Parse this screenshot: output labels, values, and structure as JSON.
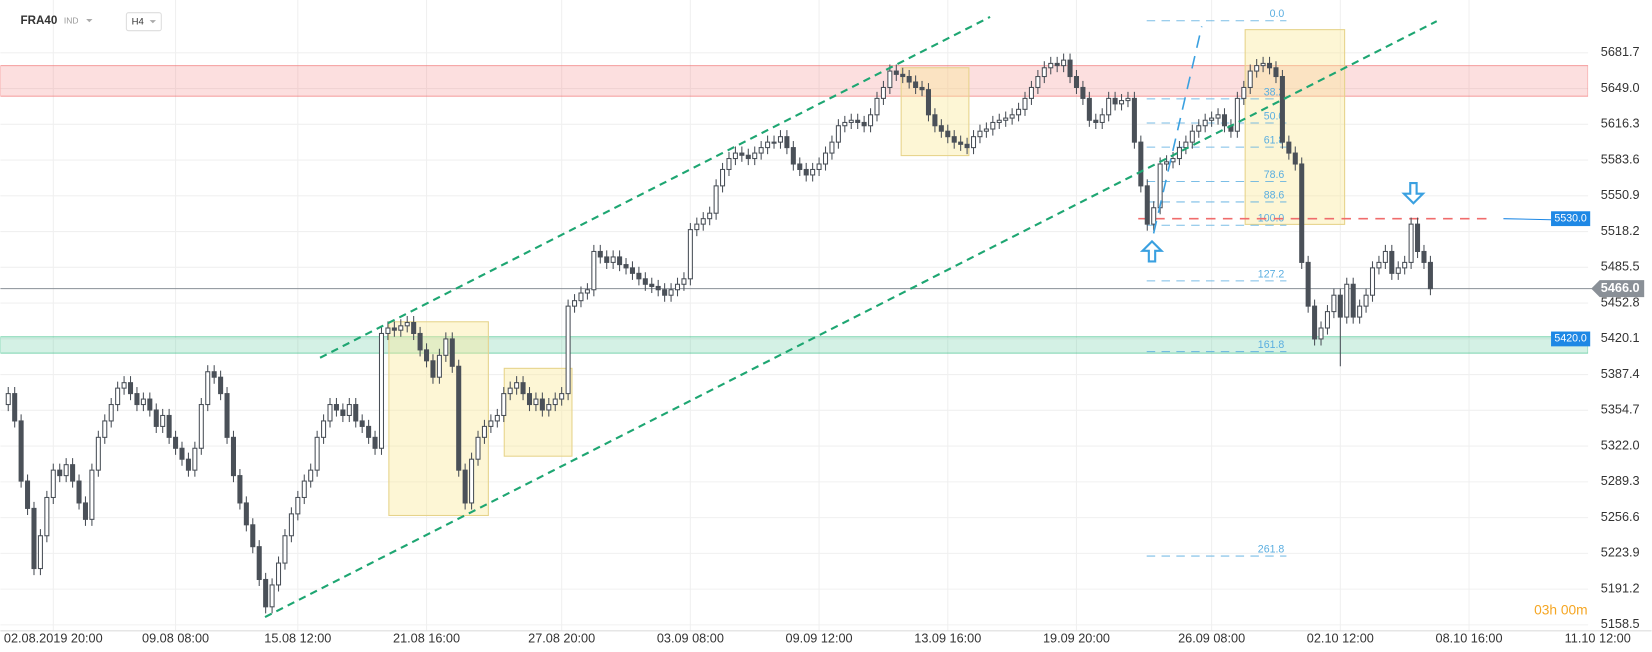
{
  "header": {
    "symbol": "FRA40",
    "market": "IND",
    "interval": "H4"
  },
  "chart_data": {
    "type": "candlestick",
    "open": [
      5360,
      5370,
      5345,
      5290,
      5265,
      5210,
      5240,
      5275,
      5300,
      5295,
      5305,
      5290,
      5270,
      5255,
      5300,
      5330,
      5345,
      5360,
      5375,
      5380,
      5370,
      5360,
      5365,
      5355,
      5340,
      5350,
      5330,
      5320,
      5310,
      5300,
      5320,
      5360,
      5390,
      5385,
      5370,
      5330,
      5295,
      5270,
      5250,
      5230,
      5200,
      5175,
      5195,
      5215,
      5240,
      5260,
      5275,
      5290,
      5300,
      5330,
      5345,
      5360,
      5355,
      5350,
      5360,
      5345,
      5340,
      5330,
      5320,
      5425,
      5430,
      5428,
      5432,
      5435,
      5425,
      5410,
      5400,
      5385,
      5405,
      5420,
      5395,
      5300,
      5270,
      5310,
      5330,
      5340,
      5345,
      5350,
      5370,
      5375,
      5380,
      5370,
      5360,
      5365,
      5355,
      5360,
      5365,
      5370,
      5450,
      5455,
      5462,
      5465,
      5500,
      5495,
      5490,
      5495,
      5488,
      5485,
      5480,
      5475,
      5470,
      5468,
      5465,
      5460,
      5465,
      5470,
      5475,
      5520,
      5525,
      5530,
      5535,
      5560,
      5575,
      5585,
      5590,
      5588,
      5585,
      5590,
      5595,
      5600,
      5600,
      5605,
      5595,
      5580,
      5575,
      5570,
      5575,
      5580,
      5590,
      5600,
      5615,
      5618,
      5620,
      5618,
      5615,
      5625,
      5640,
      5650,
      5665,
      5662,
      5660,
      5655,
      5650,
      5648,
      5625,
      5615,
      5610,
      5605,
      5600,
      5598,
      5595,
      5605,
      5610,
      5612,
      5618,
      5620,
      5622,
      5625,
      5630,
      5640,
      5650,
      5660,
      5668,
      5672,
      5670,
      5675,
      5660,
      5650,
      5640,
      5620,
      5618,
      5625,
      5640,
      5635,
      5638,
      5640,
      5600,
      5560,
      5525,
      5540,
      5580,
      5582,
      5585,
      5595,
      5600,
      5610,
      5615,
      5620,
      5622,
      5625,
      5615,
      5610,
      5640,
      5650,
      5665,
      5670,
      5672,
      5668,
      5660,
      5600,
      5590,
      5580,
      5490,
      5450,
      5420,
      5430,
      5445,
      5460,
      5440,
      5470,
      5440,
      5450,
      5460,
      5485,
      5490,
      5500,
      5480,
      5485,
      5490,
      5525,
      5500,
      5490
    ],
    "high": [
      5376,
      5376,
      5351,
      5296,
      5271,
      5246,
      5281,
      5306,
      5306,
      5311,
      5311,
      5296,
      5276,
      5306,
      5336,
      5351,
      5366,
      5381,
      5386,
      5386,
      5376,
      5371,
      5371,
      5361,
      5356,
      5356,
      5336,
      5326,
      5316,
      5326,
      5366,
      5396,
      5396,
      5391,
      5376,
      5336,
      5301,
      5276,
      5256,
      5236,
      5206,
      5201,
      5221,
      5246,
      5266,
      5281,
      5296,
      5306,
      5336,
      5351,
      5366,
      5366,
      5361,
      5366,
      5366,
      5351,
      5346,
      5336,
      5431,
      5436,
      5436,
      5438,
      5441,
      5441,
      5431,
      5416,
      5406,
      5411,
      5426,
      5426,
      5401,
      5306,
      5316,
      5336,
      5346,
      5351,
      5356,
      5376,
      5381,
      5386,
      5386,
      5376,
      5371,
      5371,
      5366,
      5371,
      5376,
      5456,
      5461,
      5468,
      5471,
      5506,
      5506,
      5501,
      5501,
      5501,
      5494,
      5491,
      5486,
      5481,
      5476,
      5474,
      5471,
      5471,
      5476,
      5481,
      5526,
      5531,
      5536,
      5541,
      5566,
      5581,
      5591,
      5596,
      5596,
      5594,
      5596,
      5601,
      5606,
      5606,
      5611,
      5611,
      5601,
      5586,
      5581,
      5581,
      5586,
      5596,
      5606,
      5621,
      5624,
      5626,
      5626,
      5624,
      5631,
      5646,
      5656,
      5671,
      5671,
      5668,
      5666,
      5661,
      5656,
      5654,
      5631,
      5621,
      5616,
      5611,
      5606,
      5604,
      5611,
      5616,
      5618,
      5624,
      5626,
      5628,
      5631,
      5636,
      5646,
      5656,
      5666,
      5674,
      5678,
      5678,
      5681,
      5681,
      5666,
      5656,
      5646,
      5626,
      5631,
      5646,
      5646,
      5644,
      5646,
      5646,
      5606,
      5566,
      5546,
      5586,
      5588,
      5591,
      5601,
      5606,
      5616,
      5621,
      5626,
      5628,
      5631,
      5631,
      5621,
      5646,
      5656,
      5671,
      5676,
      5678,
      5678,
      5674,
      5666,
      5606,
      5596,
      5586,
      5496,
      5456,
      5436,
      5451,
      5466,
      5466,
      5476,
      5476,
      5456,
      5466,
      5491,
      5496,
      5506,
      5506,
      5491,
      5496,
      5531,
      5531,
      5506,
      5496
    ],
    "low": [
      5354,
      5339,
      5284,
      5259,
      5204,
      5204,
      5234,
      5269,
      5289,
      5289,
      5284,
      5264,
      5249,
      5249,
      5294,
      5324,
      5339,
      5354,
      5369,
      5364,
      5354,
      5354,
      5349,
      5334,
      5334,
      5324,
      5314,
      5304,
      5294,
      5294,
      5314,
      5354,
      5379,
      5364,
      5324,
      5289,
      5264,
      5244,
      5224,
      5194,
      5169,
      5169,
      5189,
      5209,
      5234,
      5254,
      5269,
      5284,
      5294,
      5324,
      5339,
      5349,
      5344,
      5344,
      5339,
      5334,
      5324,
      5314,
      5314,
      5419,
      5422,
      5422,
      5426,
      5419,
      5404,
      5394,
      5379,
      5379,
      5399,
      5389,
      5294,
      5264,
      5264,
      5304,
      5324,
      5334,
      5339,
      5344,
      5364,
      5369,
      5364,
      5354,
      5354,
      5349,
      5349,
      5354,
      5359,
      5364,
      5444,
      5449,
      5456,
      5459,
      5489,
      5484,
      5484,
      5482,
      5479,
      5474,
      5469,
      5464,
      5462,
      5459,
      5454,
      5454,
      5459,
      5464,
      5469,
      5514,
      5519,
      5524,
      5529,
      5554,
      5569,
      5579,
      5582,
      5579,
      5579,
      5584,
      5589,
      5594,
      5594,
      5589,
      5574,
      5569,
      5564,
      5564,
      5569,
      5574,
      5584,
      5594,
      5609,
      5612,
      5612,
      5609,
      5609,
      5619,
      5634,
      5644,
      5656,
      5654,
      5649,
      5644,
      5642,
      5619,
      5609,
      5604,
      5599,
      5594,
      5592,
      5589,
      5589,
      5599,
      5604,
      5606,
      5612,
      5614,
      5616,
      5619,
      5624,
      5634,
      5644,
      5654,
      5662,
      5664,
      5664,
      5654,
      5644,
      5634,
      5614,
      5612,
      5612,
      5619,
      5629,
      5629,
      5632,
      5594,
      5554,
      5519,
      5519,
      5534,
      5574,
      5576,
      5579,
      5589,
      5594,
      5604,
      5609,
      5614,
      5616,
      5609,
      5604,
      5604,
      5634,
      5644,
      5659,
      5664,
      5662,
      5654,
      5594,
      5584,
      5574,
      5484,
      5444,
      5414,
      5414,
      5424,
      5439,
      5395,
      5434,
      5434,
      5434,
      5444,
      5454,
      5479,
      5484,
      5474,
      5474,
      5479,
      5484,
      5494,
      5484,
      5460
    ],
    "close": [
      5370,
      5345,
      5290,
      5265,
      5210,
      5240,
      5275,
      5300,
      5295,
      5305,
      5290,
      5270,
      5255,
      5300,
      5330,
      5345,
      5360,
      5375,
      5380,
      5370,
      5360,
      5365,
      5355,
      5340,
      5350,
      5330,
      5320,
      5310,
      5300,
      5320,
      5360,
      5390,
      5385,
      5370,
      5330,
      5295,
      5270,
      5250,
      5230,
      5200,
      5175,
      5195,
      5215,
      5240,
      5260,
      5275,
      5290,
      5300,
      5330,
      5345,
      5360,
      5355,
      5350,
      5360,
      5345,
      5340,
      5330,
      5320,
      5425,
      5430,
      5428,
      5432,
      5435,
      5425,
      5410,
      5400,
      5385,
      5405,
      5420,
      5395,
      5300,
      5270,
      5310,
      5330,
      5340,
      5345,
      5350,
      5370,
      5375,
      5380,
      5370,
      5360,
      5365,
      5355,
      5360,
      5365,
      5370,
      5450,
      5455,
      5462,
      5465,
      5500,
      5495,
      5490,
      5495,
      5488,
      5485,
      5480,
      5475,
      5470,
      5468,
      5465,
      5460,
      5465,
      5470,
      5475,
      5520,
      5525,
      5530,
      5535,
      5560,
      5575,
      5585,
      5590,
      5588,
      5585,
      5590,
      5595,
      5600,
      5600,
      5605,
      5595,
      5580,
      5575,
      5570,
      5575,
      5580,
      5590,
      5600,
      5615,
      5618,
      5620,
      5618,
      5615,
      5625,
      5640,
      5650,
      5665,
      5662,
      5660,
      5655,
      5650,
      5648,
      5625,
      5615,
      5610,
      5605,
      5600,
      5598,
      5595,
      5605,
      5610,
      5612,
      5618,
      5620,
      5622,
      5625,
      5630,
      5640,
      5650,
      5660,
      5668,
      5672,
      5670,
      5675,
      5660,
      5650,
      5640,
      5620,
      5618,
      5625,
      5640,
      5635,
      5638,
      5640,
      5600,
      5560,
      5525,
      5540,
      5580,
      5582,
      5585,
      5595,
      5600,
      5610,
      5615,
      5620,
      5622,
      5625,
      5615,
      5610,
      5640,
      5650,
      5665,
      5670,
      5672,
      5668,
      5660,
      5600,
      5590,
      5580,
      5490,
      5450,
      5420,
      5430,
      5445,
      5460,
      5440,
      5470,
      5440,
      5450,
      5460,
      5485,
      5490,
      5500,
      5480,
      5485,
      5490,
      5525,
      5500,
      5490,
      5466
    ],
    "up_color": "#ffffff",
    "down_color": "#4a5058",
    "outline_color": "#4a5058",
    "xlim": [
      -1,
      248
    ],
    "xticks": [
      {
        "value": 7,
        "label": "02.08.2019 20:00"
      },
      {
        "value": 26,
        "label": "09.08 08:00"
      },
      {
        "value": 45,
        "label": "15.08 12:00"
      },
      {
        "value": 65,
        "label": "21.08 16:00"
      },
      {
        "value": 86,
        "label": "27.08 20:00"
      },
      {
        "value": 106,
        "label": "03.09 08:00"
      },
      {
        "value": 126,
        "label": "09.09 12:00"
      },
      {
        "value": 146,
        "label": "13.09 16:00"
      },
      {
        "value": 166,
        "label": "19.09 20:00"
      },
      {
        "value": 187,
        "label": "26.09 08:00"
      },
      {
        "value": 207,
        "label": "02.10 12:00"
      },
      {
        "value": 227,
        "label": "08.10 16:00"
      },
      {
        "value": 247,
        "label": "11.10 12:00"
      }
    ],
    "ylim": [
      5154,
      5730
    ],
    "yticks": [
      5158.5,
      5191.2,
      5223.9,
      5256.6,
      5289.3,
      {
        "value": 5322,
        "label": "5322.0"
      },
      5354.7,
      5387.4,
      5420.1,
      5452.8,
      5485.5,
      5518.2,
      5550.9,
      5583.6,
      5616.3,
      {
        "value": 5649,
        "label": "5649.0"
      },
      5681.7
    ],
    "grid": true,
    "zones": [
      {
        "from": 5642,
        "to": 5670,
        "color": "#f06c6c"
      },
      {
        "from": 5407,
        "to": 5422,
        "color": "#3cbf88"
      }
    ],
    "level_lines": [
      {
        "value": 5530,
        "color": "#f06c6c"
      }
    ],
    "price_labels": [
      {
        "value": 5530,
        "label": "5530.0",
        "color": "#1e88e5"
      },
      {
        "value": 5420,
        "label": "5420.0",
        "color": "#1e88e5"
      }
    ],
    "last_price": {
      "value": 5466,
      "label": "5466.0",
      "color": "#8a9097"
    },
    "fib": {
      "start": 5711,
      "end": 5524,
      "color": "#5aaee0",
      "levels": [
        {
          "value": 0,
          "label": "0.0"
        },
        38.2,
        {
          "value": 50,
          "label": "50.0"
        },
        61.8,
        78.6,
        88.6,
        {
          "value": 100,
          "label": "100.0"
        },
        127.2,
        161.8,
        261.8
      ]
    },
    "timer": "03h 00m"
  }
}
